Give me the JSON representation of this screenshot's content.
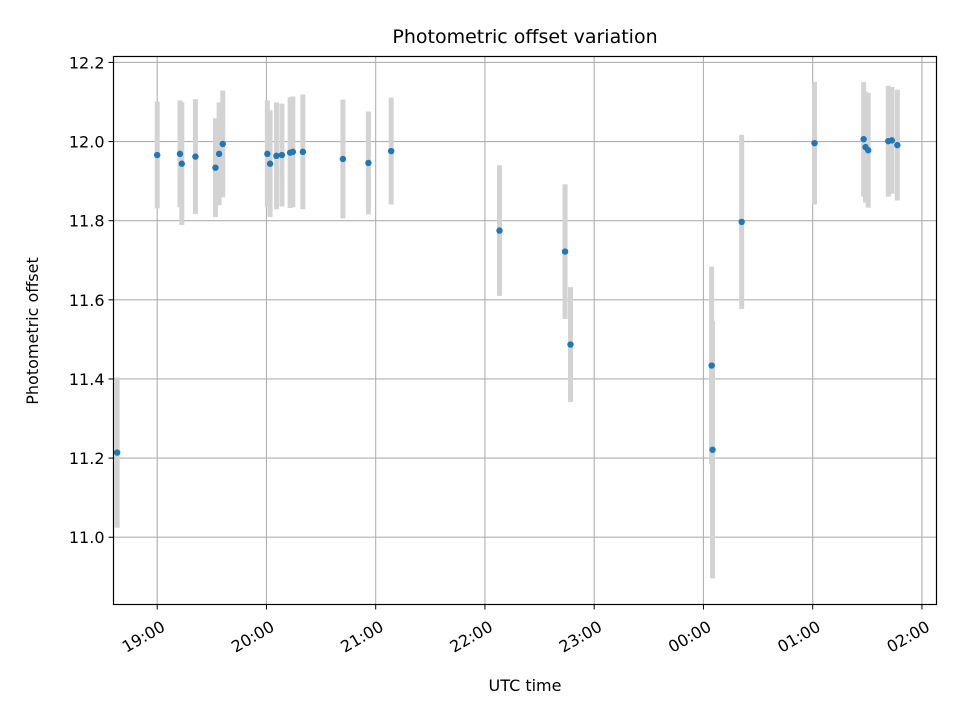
{
  "chart_data": {
    "type": "scatter",
    "title": "Photometric offset variation",
    "xlabel": "UTC time",
    "ylabel": "Photometric offset",
    "x_unit": "minutes after 18:00 UTC",
    "xlim": [
      36,
      488
    ],
    "ylim": [
      10.83,
      12.215
    ],
    "grid": true,
    "colors": {
      "point": "#1f77b4",
      "errorbar": "#d3d3d3",
      "grid": "#b0b0b0"
    },
    "x_ticks": [
      {
        "value": 60,
        "label": "19:00"
      },
      {
        "value": 120,
        "label": "20:00"
      },
      {
        "value": 180,
        "label": "21:00"
      },
      {
        "value": 240,
        "label": "22:00"
      },
      {
        "value": 300,
        "label": "23:00"
      },
      {
        "value": 360,
        "label": "00:00"
      },
      {
        "value": 420,
        "label": "01:00"
      },
      {
        "value": 480,
        "label": "02:00"
      }
    ],
    "y_ticks": [
      {
        "value": 11.0,
        "label": "11.0"
      },
      {
        "value": 11.2,
        "label": "11.2"
      },
      {
        "value": 11.4,
        "label": "11.4"
      },
      {
        "value": 11.6,
        "label": "11.6"
      },
      {
        "value": 11.8,
        "label": "11.8"
      },
      {
        "value": 12.0,
        "label": "12.0"
      },
      {
        "value": 12.2,
        "label": "12.2"
      }
    ],
    "points": [
      {
        "x": 38.0,
        "y": 11.214,
        "err": 0.19
      },
      {
        "x": 60.0,
        "y": 11.966,
        "err": 0.135
      },
      {
        "x": 72.5,
        "y": 11.969,
        "err": 0.135
      },
      {
        "x": 73.5,
        "y": 11.944,
        "err": 0.155
      },
      {
        "x": 81.0,
        "y": 11.962,
        "err": 0.145
      },
      {
        "x": 92.0,
        "y": 11.934,
        "err": 0.125
      },
      {
        "x": 94.0,
        "y": 11.969,
        "err": 0.13
      },
      {
        "x": 96.0,
        "y": 11.994,
        "err": 0.135
      },
      {
        "x": 120.5,
        "y": 11.969,
        "err": 0.135
      },
      {
        "x": 122.0,
        "y": 11.944,
        "err": 0.135
      },
      {
        "x": 125.5,
        "y": 11.964,
        "err": 0.135
      },
      {
        "x": 128.5,
        "y": 11.966,
        "err": 0.13
      },
      {
        "x": 133.0,
        "y": 11.972,
        "err": 0.14
      },
      {
        "x": 134.5,
        "y": 11.974,
        "err": 0.14
      },
      {
        "x": 140.0,
        "y": 11.974,
        "err": 0.145
      },
      {
        "x": 162.0,
        "y": 11.956,
        "err": 0.15
      },
      {
        "x": 176.0,
        "y": 11.946,
        "err": 0.13
      },
      {
        "x": 188.5,
        "y": 11.976,
        "err": 0.135
      },
      {
        "x": 248.0,
        "y": 11.775,
        "err": 0.165
      },
      {
        "x": 284.0,
        "y": 11.722,
        "err": 0.17
      },
      {
        "x": 287.0,
        "y": 11.487,
        "err": 0.145
      },
      {
        "x": 364.5,
        "y": 11.434,
        "err": 0.25
      },
      {
        "x": 365.0,
        "y": 11.221,
        "err": 0.325
      },
      {
        "x": 381.0,
        "y": 11.797,
        "err": 0.22
      },
      {
        "x": 421.0,
        "y": 11.996,
        "err": 0.155
      },
      {
        "x": 448.0,
        "y": 12.006,
        "err": 0.145
      },
      {
        "x": 449.0,
        "y": 11.986,
        "err": 0.14
      },
      {
        "x": 450.5,
        "y": 11.978,
        "err": 0.145
      },
      {
        "x": 461.5,
        "y": 12.001,
        "err": 0.14
      },
      {
        "x": 463.5,
        "y": 12.003,
        "err": 0.135
      },
      {
        "x": 466.5,
        "y": 11.991,
        "err": 0.14
      }
    ]
  }
}
